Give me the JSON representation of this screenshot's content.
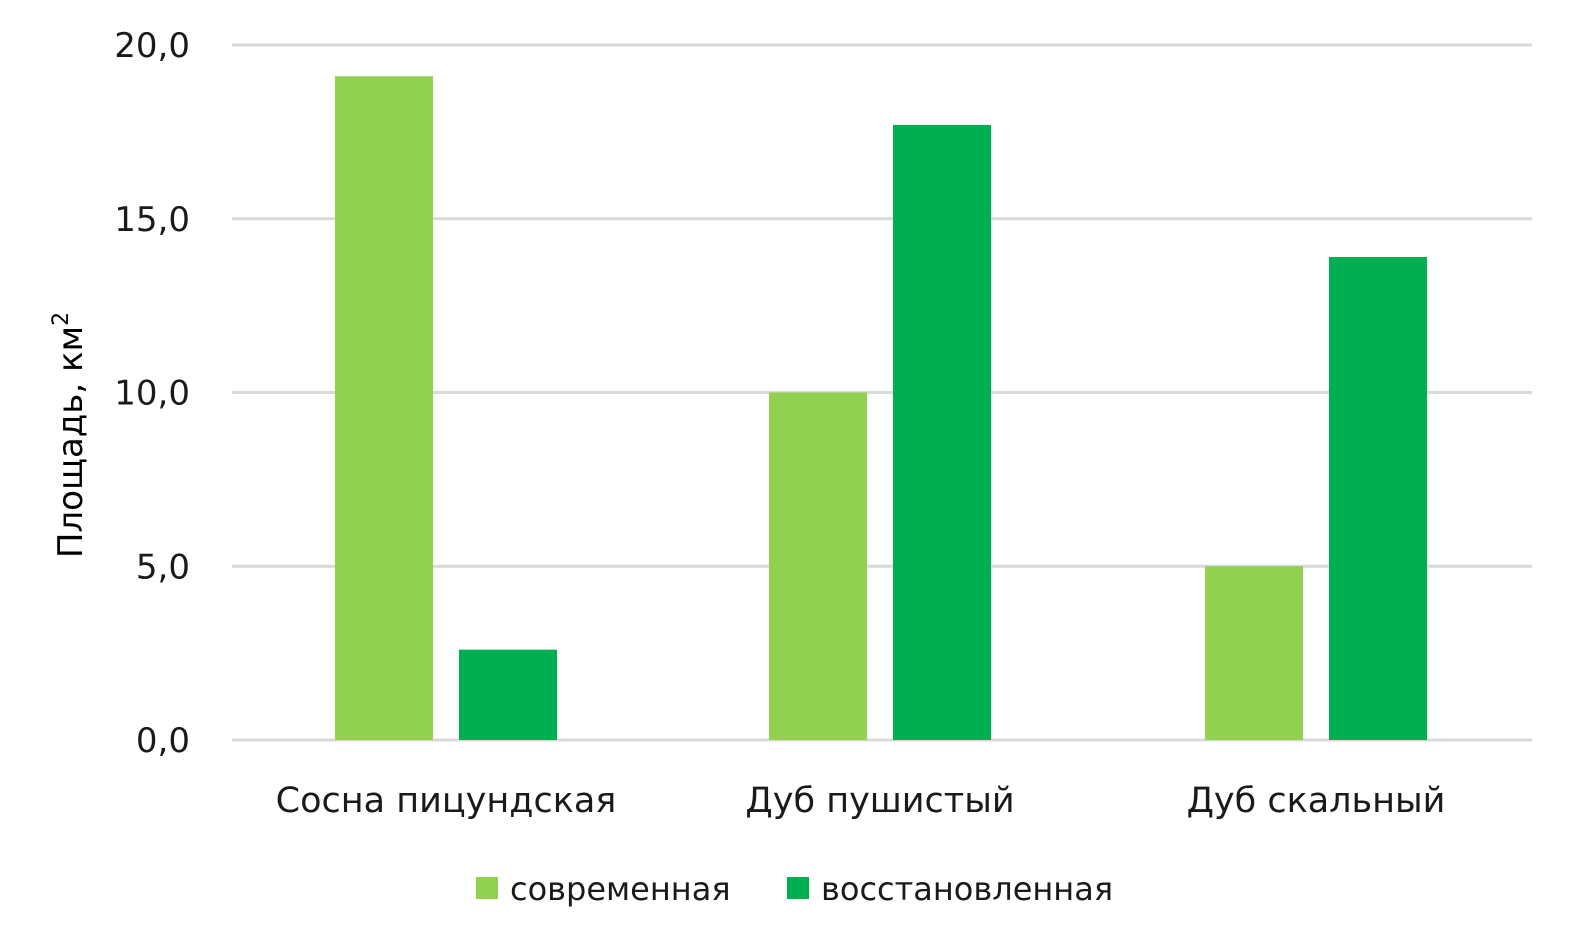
{
  "chart_data": {
    "type": "bar",
    "categories": [
      "Сосна пицундская",
      "Дуб пушистый",
      "Дуб скальный"
    ],
    "series": [
      {
        "name": "современная",
        "color": "#92d050",
        "values": [
          19.1,
          10.0,
          5.0
        ]
      },
      {
        "name": "восстановленная",
        "color": "#00b050",
        "values": [
          2.6,
          17.7,
          13.9
        ]
      }
    ],
    "ylabel": "Площадь, км²",
    "ylabel_main": "Площадь, км",
    "ylabel_sup": "2",
    "ylim": [
      0,
      20
    ],
    "yticks": [
      "0,0",
      "5,0",
      "10,0",
      "15,0",
      "20,0"
    ],
    "ytick_values": [
      0,
      5,
      10,
      15,
      20
    ],
    "grid": true,
    "legend_position": "bottom"
  }
}
